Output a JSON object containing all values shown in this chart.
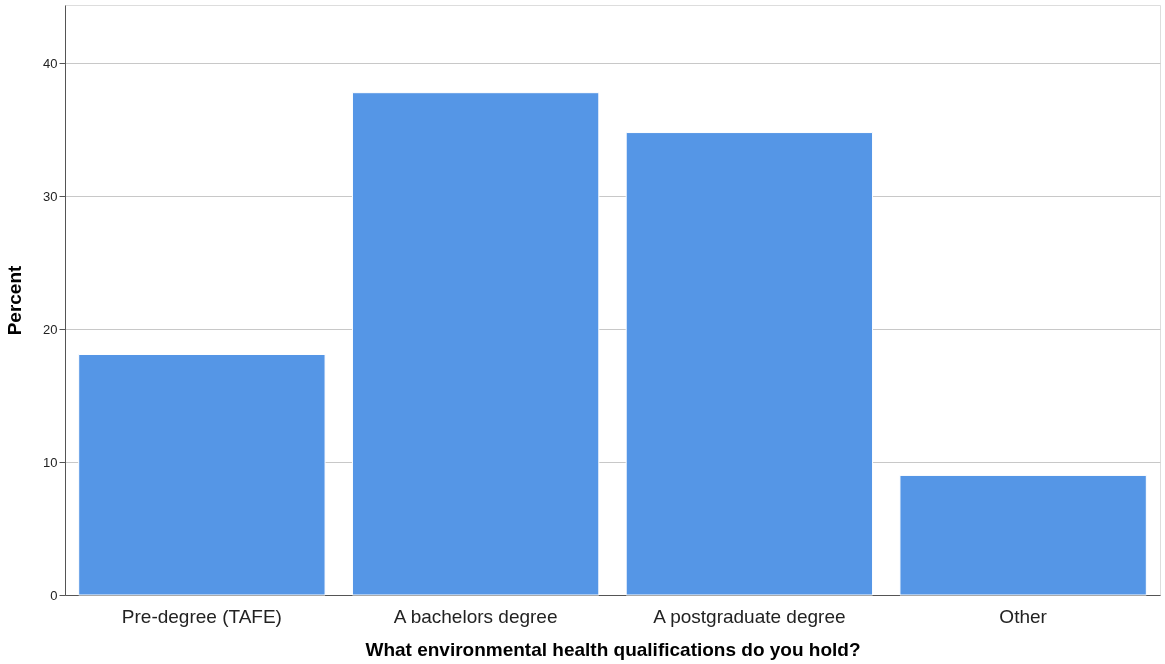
{
  "chart_data": {
    "type": "bar",
    "xlabel": "What environmental health qualifications do you hold?",
    "ylabel": "Percent",
    "categories": [
      "Pre-degree (TAFE)",
      "A bachelors degree",
      "A postgraduate degree",
      "Other"
    ],
    "values": [
      18.1,
      37.8,
      34.8,
      9.0
    ],
    "color": "#5596e6",
    "ylim": [
      0,
      44.4
    ],
    "yticks": [
      0,
      10,
      20,
      30,
      40
    ],
    "grid": "y"
  }
}
